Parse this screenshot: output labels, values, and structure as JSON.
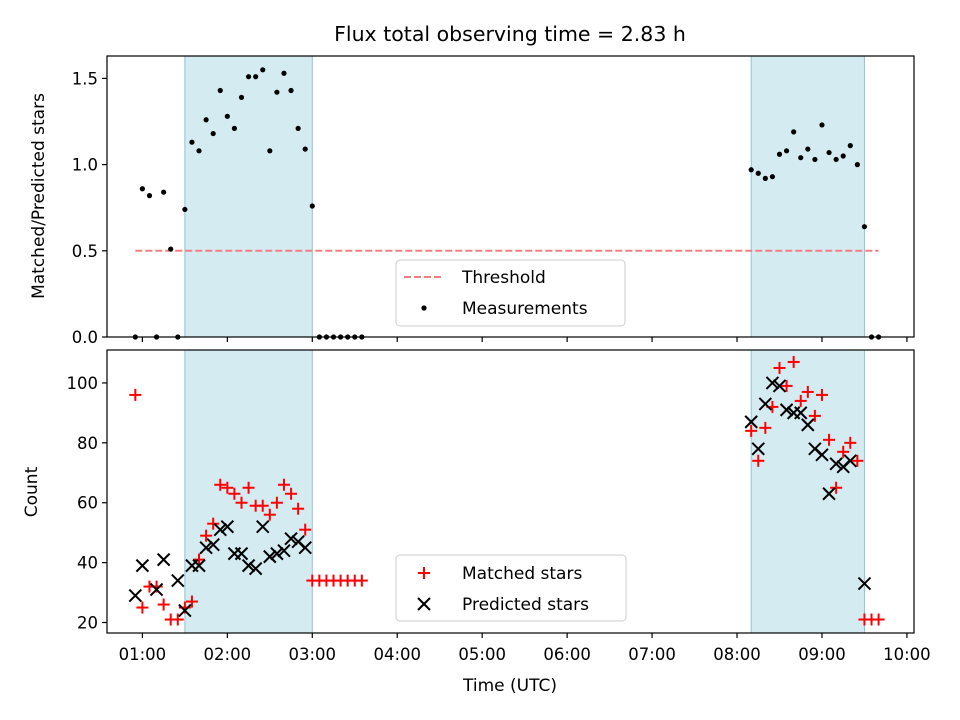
{
  "chart_data": [
    {
      "type": "scatter",
      "title": "Flux total observing time = 2.83 h",
      "xlabel": "",
      "ylabel": "Matched/Predicted stars",
      "xlim": [
        "00:35",
        "10:05"
      ],
      "ylim": [
        0,
        1.63
      ],
      "yticks": [
        "0.0",
        "0.5",
        "1.0",
        "1.5"
      ],
      "threshold": {
        "value": 0.5,
        "x_start": "00:55",
        "x_end": "09:40",
        "color": "#f08080"
      },
      "shaded_periods": [
        [
          "01:30",
          "03:00"
        ],
        [
          "08:10",
          "09:30"
        ]
      ],
      "shade_color": "#add8e6",
      "legend": {
        "position": "lower center",
        "entries": [
          "Threshold",
          "Measurements"
        ]
      },
      "series": [
        {
          "name": "Measurements",
          "color": "#000000",
          "marker": "dot",
          "points": [
            [
              "00:55",
              0.0
            ],
            [
              "01:00",
              0.86
            ],
            [
              "01:05",
              0.82
            ],
            [
              "01:10",
              0.0
            ],
            [
              "01:15",
              0.84
            ],
            [
              "01:20",
              0.51
            ],
            [
              "01:25",
              0.0
            ],
            [
              "01:30",
              0.74
            ],
            [
              "01:35",
              1.13
            ],
            [
              "01:40",
              1.08
            ],
            [
              "01:45",
              1.26
            ],
            [
              "01:50",
              1.18
            ],
            [
              "01:55",
              1.43
            ],
            [
              "02:00",
              1.28
            ],
            [
              "02:05",
              1.21
            ],
            [
              "02:10",
              1.39
            ],
            [
              "02:15",
              1.51
            ],
            [
              "02:20",
              1.51
            ],
            [
              "02:25",
              1.55
            ],
            [
              "02:30",
              1.08
            ],
            [
              "02:35",
              1.42
            ],
            [
              "02:40",
              1.53
            ],
            [
              "02:45",
              1.43
            ],
            [
              "02:50",
              1.21
            ],
            [
              "02:55",
              1.09
            ],
            [
              "03:00",
              0.76
            ],
            [
              "03:05",
              0.0
            ],
            [
              "03:10",
              0.0
            ],
            [
              "03:15",
              0.0
            ],
            [
              "03:20",
              0.0
            ],
            [
              "03:25",
              0.0
            ],
            [
              "03:30",
              0.0
            ],
            [
              "03:35",
              0.0
            ],
            [
              "08:10",
              0.97
            ],
            [
              "08:15",
              0.95
            ],
            [
              "08:20",
              0.92
            ],
            [
              "08:25",
              0.93
            ],
            [
              "08:30",
              1.06
            ],
            [
              "08:35",
              1.08
            ],
            [
              "08:40",
              1.19
            ],
            [
              "08:45",
              1.04
            ],
            [
              "08:50",
              1.09
            ],
            [
              "08:55",
              1.03
            ],
            [
              "09:00",
              1.23
            ],
            [
              "09:05",
              1.07
            ],
            [
              "09:10",
              1.03
            ],
            [
              "09:15",
              1.05
            ],
            [
              "09:20",
              1.11
            ],
            [
              "09:25",
              1.0
            ],
            [
              "09:30",
              0.64
            ],
            [
              "09:35",
              0.0
            ],
            [
              "09:40",
              0.0
            ]
          ]
        }
      ]
    },
    {
      "type": "scatter",
      "title": "",
      "xlabel": "Time (UTC)",
      "ylabel": "Count",
      "xlim": [
        "00:35",
        "10:05"
      ],
      "ylim": [
        16.5,
        111
      ],
      "yticks": [
        "20",
        "40",
        "60",
        "80",
        "100"
      ],
      "xticks": [
        "01:00",
        "02:00",
        "03:00",
        "04:00",
        "05:00",
        "06:00",
        "07:00",
        "08:00",
        "09:00",
        "10:00"
      ],
      "shaded_periods": [
        [
          "01:30",
          "03:00"
        ],
        [
          "08:10",
          "09:30"
        ]
      ],
      "shade_color": "#add8e6",
      "legend": {
        "position": "lower center",
        "entries": [
          "Matched stars",
          "Predicted stars"
        ]
      },
      "series": [
        {
          "name": "Matched stars",
          "color": "#ff0000",
          "marker": "plus",
          "points": [
            [
              "00:55",
              96
            ],
            [
              "01:00",
              25
            ],
            [
              "01:05",
              32
            ],
            [
              "01:10",
              32
            ],
            [
              "01:15",
              26
            ],
            [
              "01:20",
              21
            ],
            [
              "01:25",
              21
            ],
            [
              "01:30",
              25
            ],
            [
              "01:35",
              27
            ],
            [
              "01:40",
              41
            ],
            [
              "01:45",
              49
            ],
            [
              "01:50",
              53
            ],
            [
              "01:55",
              66
            ],
            [
              "02:00",
              65
            ],
            [
              "02:05",
              63
            ],
            [
              "02:10",
              60
            ],
            [
              "02:15",
              65
            ],
            [
              "02:20",
              59
            ],
            [
              "02:25",
              59
            ],
            [
              "02:30",
              56
            ],
            [
              "02:35",
              60
            ],
            [
              "02:40",
              66
            ],
            [
              "02:45",
              63
            ],
            [
              "02:50",
              58
            ],
            [
              "02:55",
              51
            ],
            [
              "03:00",
              34
            ],
            [
              "03:05",
              34
            ],
            [
              "03:10",
              34
            ],
            [
              "03:15",
              34
            ],
            [
              "03:20",
              34
            ],
            [
              "03:25",
              34
            ],
            [
              "03:30",
              34
            ],
            [
              "03:35",
              34
            ],
            [
              "08:10",
              84
            ],
            [
              "08:15",
              74
            ],
            [
              "08:20",
              85
            ],
            [
              "08:25",
              92
            ],
            [
              "08:30",
              105
            ],
            [
              "08:35",
              99
            ],
            [
              "08:40",
              107
            ],
            [
              "08:45",
              94
            ],
            [
              "08:50",
              97
            ],
            [
              "08:55",
              89
            ],
            [
              "09:00",
              96
            ],
            [
              "09:05",
              81
            ],
            [
              "09:10",
              65
            ],
            [
              "09:15",
              77
            ],
            [
              "09:20",
              80
            ],
            [
              "09:25",
              74
            ],
            [
              "09:30",
              21
            ],
            [
              "09:35",
              21
            ],
            [
              "09:40",
              21
            ]
          ]
        },
        {
          "name": "Predicted stars",
          "color": "#000000",
          "marker": "x",
          "points": [
            [
              "00:55",
              29
            ],
            [
              "01:00",
              39
            ],
            [
              "01:10",
              31
            ],
            [
              "01:15",
              41
            ],
            [
              "01:25",
              34
            ],
            [
              "01:30",
              24
            ],
            [
              "01:35",
              39
            ],
            [
              "01:40",
              39
            ],
            [
              "01:45",
              45
            ],
            [
              "01:50",
              46
            ],
            [
              "01:55",
              51
            ],
            [
              "02:00",
              52
            ],
            [
              "02:05",
              43
            ],
            [
              "02:10",
              43
            ],
            [
              "02:15",
              39
            ],
            [
              "02:20",
              38
            ],
            [
              "02:25",
              52
            ],
            [
              "02:30",
              42
            ],
            [
              "02:35",
              43
            ],
            [
              "02:40",
              44
            ],
            [
              "02:45",
              48
            ],
            [
              "02:50",
              47
            ],
            [
              "02:55",
              45
            ],
            [
              "08:10",
              87
            ],
            [
              "08:15",
              78
            ],
            [
              "08:20",
              93
            ],
            [
              "08:25",
              100
            ],
            [
              "08:30",
              99
            ],
            [
              "08:35",
              91
            ],
            [
              "08:40",
              90
            ],
            [
              "08:45",
              90
            ],
            [
              "08:50",
              86
            ],
            [
              "08:55",
              78
            ],
            [
              "09:00",
              76
            ],
            [
              "09:05",
              63
            ],
            [
              "09:10",
              73
            ],
            [
              "09:15",
              72
            ],
            [
              "09:20",
              74
            ],
            [
              "09:30",
              33
            ]
          ]
        }
      ]
    }
  ]
}
